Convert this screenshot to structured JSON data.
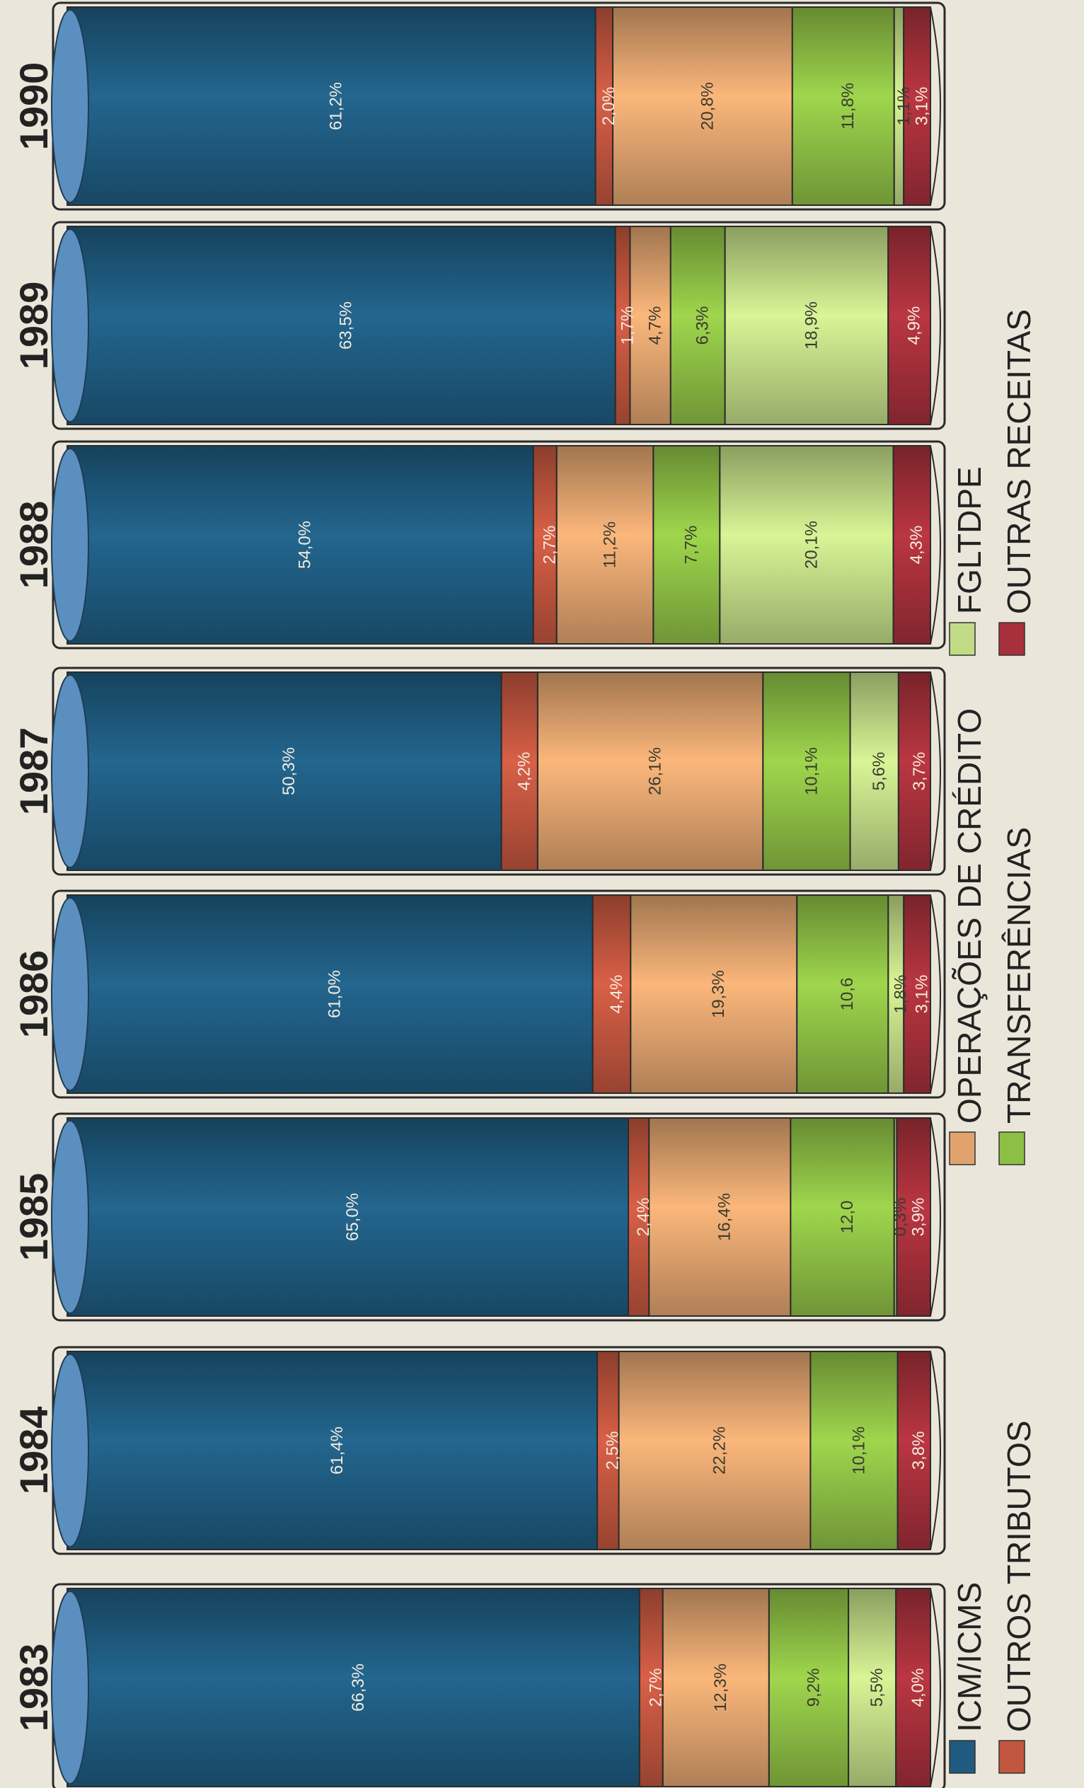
{
  "chart_data": {
    "type": "bar",
    "stacked": true,
    "orientation": "horizontal",
    "value_format": "percent",
    "categories": [
      "1983",
      "1984",
      "1985",
      "1986",
      "1987",
      "1988",
      "1989",
      "1990"
    ],
    "series": [
      {
        "name": "ICM/ICMS",
        "color": "#1f5b80",
        "values": [
          66.3,
          61.4,
          65.0,
          61.0,
          50.3,
          54.0,
          63.5,
          61.2
        ],
        "labels": [
          "66,3%",
          "61,4%",
          "65,0%",
          "61,0%",
          "50,3%",
          "54,0%",
          "63,5%",
          "61,2%"
        ]
      },
      {
        "name": "OUTROS TRIBUTOS",
        "color": "#c2563f",
        "values": [
          2.7,
          2.5,
          2.4,
          4.4,
          4.2,
          2.7,
          1.7,
          2.0
        ],
        "labels": [
          "2,7%",
          "2,5%",
          "2,4%",
          "4,4%",
          "4,2%",
          "2,7%",
          "1,7%",
          "2,0%"
        ]
      },
      {
        "name": "OPERAÇÕES DE CRÉDITO",
        "color": "#e0a36e",
        "values": [
          12.3,
          22.2,
          16.4,
          19.3,
          26.1,
          11.2,
          4.7,
          20.8
        ],
        "labels": [
          "12,3%",
          "22,2%",
          "16,4%",
          "19,3%",
          "26,1%",
          "11,2%",
          "4,7%",
          "20,8%"
        ]
      },
      {
        "name": "TRANSFERÊNCIAS",
        "color": "#8ebf45",
        "values": [
          9.2,
          10.1,
          12.0,
          10.6,
          10.1,
          7.7,
          6.3,
          11.8
        ],
        "labels": [
          "9,2%",
          "10,1%",
          "12,0",
          "10,6",
          "10,1%",
          "7,7%",
          "6,3%",
          "11,8%"
        ]
      },
      {
        "name": "FGLTDPE",
        "color": "#c1db86",
        "values": [
          5.5,
          0.0,
          0.3,
          1.8,
          5.6,
          20.1,
          18.9,
          1.1
        ],
        "labels": [
          "5,5%",
          "",
          "0,3%",
          "1,8%",
          "5,6%",
          "20,1%",
          "18,9%",
          "1,1%"
        ]
      },
      {
        "name": "OUTRAS RECEITAS",
        "color": "#a6303b",
        "values": [
          4.0,
          3.8,
          3.9,
          3.1,
          3.7,
          4.3,
          4.9,
          3.1
        ],
        "labels": [
          "4,0%",
          "3,8%",
          "3,9%",
          "3,1%",
          "3,7%",
          "4,3%",
          "4,9%",
          "3,1%"
        ]
      }
    ],
    "legend_position": "bottom"
  }
}
